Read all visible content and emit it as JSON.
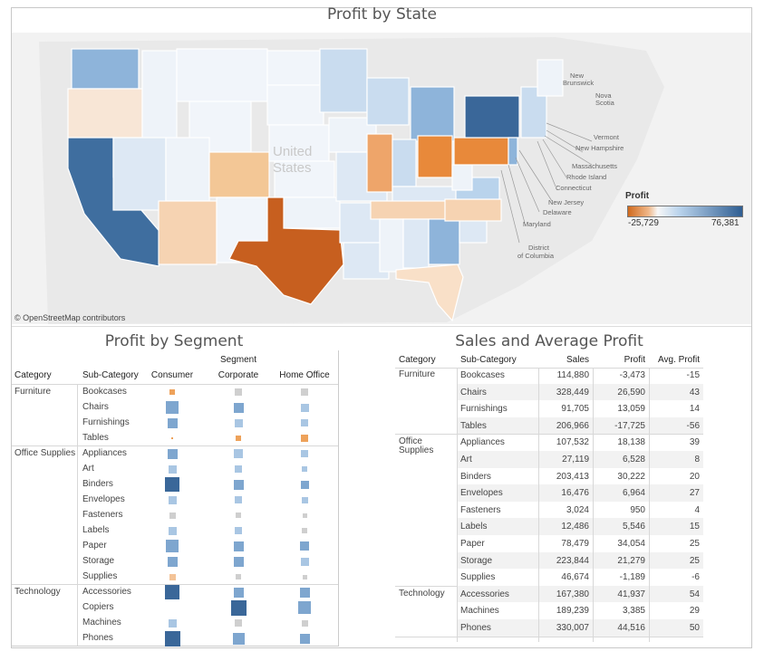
{
  "map": {
    "title": "Profit by State",
    "country_label": "United States",
    "attribution": "© OpenStreetMap contributors",
    "legend": {
      "title": "Profit",
      "min": "-25,729",
      "max": "76,381"
    },
    "callouts": [
      "New Brunswick",
      "Nova Scotia",
      "Vermont",
      "New Hampshire",
      "Massachusetts",
      "Rhode Island",
      "Connecticut",
      "New Jersey",
      "Delaware",
      "Maryland",
      "District of Columbia"
    ],
    "colors": {
      "strong_blue": "#3a6799",
      "blue": "#6f9ac6",
      "light_blue": "#b9d3ec",
      "pale": "#e8f0f8",
      "pale_orange": "#f6d3b2",
      "orange": "#e8893a",
      "dark_orange": "#c75f1f"
    }
  },
  "segment": {
    "title": "Profit by Segment",
    "segment_header": "Segment",
    "col_category": "Category",
    "col_subcategory": "Sub-Category",
    "segments": [
      "Consumer",
      "Corporate",
      "Home Office"
    ],
    "groups": [
      {
        "category": "Furniture",
        "rows": [
          {
            "sub": "Bookcases",
            "marks": [
              [
                "orange",
                0.35
              ],
              [
                "gray",
                0.45
              ],
              [
                "gray",
                0.45
              ]
            ]
          },
          {
            "sub": "Chairs",
            "marks": [
              [
                "blue",
                0.8
              ],
              [
                "blue",
                0.6
              ],
              [
                "light",
                0.5
              ]
            ]
          },
          {
            "sub": "Furnishings",
            "marks": [
              [
                "blue",
                0.6
              ],
              [
                "light",
                0.5
              ],
              [
                "light",
                0.45
              ]
            ]
          },
          {
            "sub": "Tables",
            "marks": [
              [
                "orange",
                0.1
              ],
              [
                "orange",
                0.35
              ],
              [
                "orange",
                0.45
              ]
            ]
          }
        ]
      },
      {
        "category": "Office Supplies",
        "rows": [
          {
            "sub": "Appliances",
            "marks": [
              [
                "blue",
                0.6
              ],
              [
                "light",
                0.55
              ],
              [
                "light",
                0.45
              ]
            ]
          },
          {
            "sub": "Art",
            "marks": [
              [
                "light",
                0.5
              ],
              [
                "light",
                0.45
              ],
              [
                "light",
                0.35
              ]
            ]
          },
          {
            "sub": "Binders",
            "marks": [
              [
                "dark",
                0.9
              ],
              [
                "blue",
                0.6
              ],
              [
                "blue",
                0.5
              ]
            ]
          },
          {
            "sub": "Envelopes",
            "marks": [
              [
                "light",
                0.5
              ],
              [
                "light",
                0.45
              ],
              [
                "light",
                0.4
              ]
            ]
          },
          {
            "sub": "Fasteners",
            "marks": [
              [
                "gray",
                0.4
              ],
              [
                "gray",
                0.35
              ],
              [
                "gray",
                0.3
              ]
            ]
          },
          {
            "sub": "Labels",
            "marks": [
              [
                "light",
                0.5
              ],
              [
                "light",
                0.45
              ],
              [
                "gray",
                0.35
              ]
            ]
          },
          {
            "sub": "Paper",
            "marks": [
              [
                "blue",
                0.8
              ],
              [
                "blue",
                0.6
              ],
              [
                "blue",
                0.55
              ]
            ]
          },
          {
            "sub": "Storage",
            "marks": [
              [
                "blue",
                0.6
              ],
              [
                "blue",
                0.6
              ],
              [
                "light",
                0.5
              ]
            ]
          },
          {
            "sub": "Supplies",
            "marks": [
              [
                "peach",
                0.4
              ],
              [
                "gray",
                0.35
              ],
              [
                "gray",
                0.3
              ]
            ]
          }
        ]
      },
      {
        "category": "Technology",
        "rows": [
          {
            "sub": "Accessories",
            "marks": [
              [
                "dark",
                0.9
              ],
              [
                "blue",
                0.6
              ],
              [
                "blue",
                0.6
              ]
            ]
          },
          {
            "sub": "Copiers",
            "marks": [
              [
                "gray",
                0.0
              ],
              [
                "dark",
                0.95
              ],
              [
                "blue",
                0.75
              ]
            ]
          },
          {
            "sub": "Machines",
            "marks": [
              [
                "light",
                0.5
              ],
              [
                "gray",
                0.45
              ],
              [
                "gray",
                0.4
              ]
            ]
          },
          {
            "sub": "Phones",
            "marks": [
              [
                "dark",
                0.95
              ],
              [
                "blue",
                0.7
              ],
              [
                "blue",
                0.6
              ]
            ]
          }
        ]
      }
    ]
  },
  "sales": {
    "title": "Sales and Average Profit",
    "col_category": "Category",
    "col_subcategory": "Sub-Category",
    "col_sales": "Sales",
    "col_profit": "Profit",
    "col_avg": "Avg. Profit",
    "groups": [
      {
        "category": "Furniture",
        "rows": [
          [
            "Bookcases",
            "114,880",
            "-3,473",
            "-15"
          ],
          [
            "Chairs",
            "328,449",
            "26,590",
            "43"
          ],
          [
            "Furnishings",
            "91,705",
            "13,059",
            "14"
          ],
          [
            "Tables",
            "206,966",
            "-17,725",
            "-56"
          ]
        ]
      },
      {
        "category": "Office Supplies",
        "rows": [
          [
            "Appliances",
            "107,532",
            "18,138",
            "39"
          ],
          [
            "Art",
            "27,119",
            "6,528",
            "8"
          ],
          [
            "Binders",
            "203,413",
            "30,222",
            "20"
          ],
          [
            "Envelopes",
            "16,476",
            "6,964",
            "27"
          ],
          [
            "Fasteners",
            "3,024",
            "950",
            "4"
          ],
          [
            "Labels",
            "12,486",
            "5,546",
            "15"
          ],
          [
            "Paper",
            "78,479",
            "34,054",
            "25"
          ],
          [
            "Storage",
            "223,844",
            "21,279",
            "25"
          ],
          [
            "Supplies",
            "46,674",
            "-1,189",
            "-6"
          ]
        ]
      },
      {
        "category": "Technology",
        "rows": [
          [
            "Accessories",
            "167,380",
            "41,937",
            "54"
          ],
          [
            "Machines",
            "189,239",
            "3,385",
            "29"
          ],
          [
            "Phones",
            "330,007",
            "44,516",
            "50"
          ]
        ]
      }
    ]
  }
}
